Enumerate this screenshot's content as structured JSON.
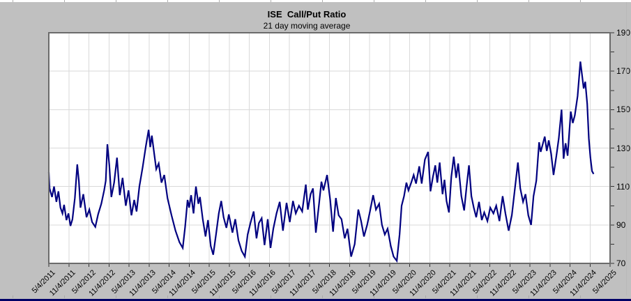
{
  "chart_data": {
    "type": "line",
    "title": "ISE  Call/Put Ratio",
    "subtitle": "21 day moving average",
    "grid": true,
    "legend_position": "none",
    "y_axis_side": "right",
    "x_label_rotation": -45,
    "x_range_decimal_years": [
      2011.34,
      2025.34
    ],
    "ylim": [
      70,
      190
    ],
    "y_major_ticks": [
      70,
      90,
      110,
      130,
      150,
      170,
      190
    ],
    "y_minor_step": 10,
    "x_tick_labels": [
      "5/4/2011",
      "11/4/2011",
      "5/4/2012",
      "11/4/2012",
      "5/4/2013",
      "11/4/2013",
      "5/4/2014",
      "11/4/2014",
      "5/4/2015",
      "11/4/2015",
      "5/4/2016",
      "11/4/2016",
      "5/4/2017",
      "11/4/2017",
      "5/4/2018",
      "11/4/2018",
      "5/4/2019",
      "11/4/2019",
      "5/4/2020",
      "11/4/2020",
      "5/4/2021",
      "11/4/2021",
      "5/4/2022",
      "11/4/2022",
      "5/4/2023",
      "11/4/2023",
      "5/4/2024",
      "11/4/2024",
      "5/4/2025"
    ],
    "colors": {
      "line": "#000080",
      "background": "#c0c0c0",
      "plot_background": "#ffffff",
      "gridline": "#d9d9d9",
      "plot_border": "#6b6b6b",
      "tick": "#333333",
      "bottom_strip": "#000066"
    },
    "series": [
      {
        "name": "ISE Call/Put Ratio 21-day moving average",
        "points": [
          [
            2011.34,
            117.5
          ],
          [
            2011.36,
            109
          ],
          [
            2011.42,
            104.5
          ],
          [
            2011.47,
            110
          ],
          [
            2011.53,
            102
          ],
          [
            2011.58,
            107.5
          ],
          [
            2011.63,
            99
          ],
          [
            2011.68,
            96
          ],
          [
            2011.72,
            100.5
          ],
          [
            2011.78,
            92.5
          ],
          [
            2011.83,
            96
          ],
          [
            2011.88,
            89.5
          ],
          [
            2011.93,
            93
          ],
          [
            2011.99,
            104
          ],
          [
            2012.05,
            121.5
          ],
          [
            2012.09,
            113
          ],
          [
            2012.13,
            99
          ],
          [
            2012.2,
            106
          ],
          [
            2012.28,
            94
          ],
          [
            2012.35,
            98
          ],
          [
            2012.42,
            91.5
          ],
          [
            2012.5,
            89
          ],
          [
            2012.57,
            95.5
          ],
          [
            2012.65,
            101
          ],
          [
            2012.72,
            108
          ],
          [
            2012.76,
            113
          ],
          [
            2012.8,
            132
          ],
          [
            2012.85,
            121
          ],
          [
            2012.9,
            104.5
          ],
          [
            2012.97,
            112
          ],
          [
            2013.04,
            125
          ],
          [
            2013.11,
            105.5
          ],
          [
            2013.18,
            114.5
          ],
          [
            2013.26,
            100
          ],
          [
            2013.33,
            108
          ],
          [
            2013.4,
            95
          ],
          [
            2013.47,
            103
          ],
          [
            2013.53,
            97
          ],
          [
            2013.6,
            110
          ],
          [
            2013.68,
            120
          ],
          [
            2013.76,
            131
          ],
          [
            2013.83,
            139.5
          ],
          [
            2013.87,
            130.5
          ],
          [
            2013.91,
            136.5
          ],
          [
            2013.97,
            127
          ],
          [
            2014.02,
            119
          ],
          [
            2014.08,
            122
          ],
          [
            2014.15,
            112
          ],
          [
            2014.22,
            116
          ],
          [
            2014.3,
            104
          ],
          [
            2014.4,
            95
          ],
          [
            2014.5,
            87
          ],
          [
            2014.6,
            81
          ],
          [
            2014.68,
            78
          ],
          [
            2014.74,
            89
          ],
          [
            2014.8,
            103
          ],
          [
            2014.84,
            99
          ],
          [
            2014.89,
            105.5
          ],
          [
            2014.95,
            96
          ],
          [
            2015.01,
            110
          ],
          [
            2015.07,
            101
          ],
          [
            2015.11,
            104.5
          ],
          [
            2015.18,
            93
          ],
          [
            2015.25,
            84
          ],
          [
            2015.31,
            92.5
          ],
          [
            2015.38,
            79
          ],
          [
            2015.44,
            74.5
          ],
          [
            2015.51,
            85
          ],
          [
            2015.58,
            96
          ],
          [
            2015.64,
            102.5
          ],
          [
            2015.7,
            94
          ],
          [
            2015.77,
            88.5
          ],
          [
            2015.83,
            95.5
          ],
          [
            2015.92,
            86
          ],
          [
            2015.99,
            93
          ],
          [
            2016.07,
            82
          ],
          [
            2016.15,
            76.5
          ],
          [
            2016.23,
            73.5
          ],
          [
            2016.3,
            85
          ],
          [
            2016.37,
            91
          ],
          [
            2016.45,
            97
          ],
          [
            2016.52,
            83
          ],
          [
            2016.58,
            91
          ],
          [
            2016.65,
            93.5
          ],
          [
            2016.72,
            79.5
          ],
          [
            2016.8,
            93
          ],
          [
            2016.87,
            78
          ],
          [
            2016.94,
            88
          ],
          [
            2017.02,
            96
          ],
          [
            2017.1,
            102
          ],
          [
            2017.18,
            87
          ],
          [
            2017.27,
            101.5
          ],
          [
            2017.35,
            91.5
          ],
          [
            2017.43,
            102.5
          ],
          [
            2017.5,
            96
          ],
          [
            2017.58,
            100
          ],
          [
            2017.66,
            97
          ],
          [
            2017.75,
            111
          ],
          [
            2017.8,
            98
          ],
          [
            2017.87,
            106
          ],
          [
            2017.93,
            109
          ],
          [
            2018.0,
            86
          ],
          [
            2018.08,
            101
          ],
          [
            2018.14,
            112.5
          ],
          [
            2018.19,
            108
          ],
          [
            2018.28,
            116
          ],
          [
            2018.36,
            103
          ],
          [
            2018.43,
            86.5
          ],
          [
            2018.5,
            104
          ],
          [
            2018.57,
            95
          ],
          [
            2018.64,
            93
          ],
          [
            2018.72,
            83
          ],
          [
            2018.79,
            88
          ],
          [
            2018.88,
            73.5
          ],
          [
            2018.97,
            80
          ],
          [
            2019.06,
            98
          ],
          [
            2019.13,
            92
          ],
          [
            2019.2,
            84
          ],
          [
            2019.28,
            90
          ],
          [
            2019.35,
            97
          ],
          [
            2019.43,
            105.5
          ],
          [
            2019.5,
            98
          ],
          [
            2019.58,
            101
          ],
          [
            2019.65,
            90
          ],
          [
            2019.72,
            85
          ],
          [
            2019.79,
            88
          ],
          [
            2019.87,
            79
          ],
          [
            2019.94,
            73.5
          ],
          [
            2020.02,
            71.3
          ],
          [
            2020.09,
            85
          ],
          [
            2020.14,
            100
          ],
          [
            2020.2,
            105
          ],
          [
            2020.26,
            112
          ],
          [
            2020.31,
            108
          ],
          [
            2020.38,
            112
          ],
          [
            2020.44,
            116
          ],
          [
            2020.5,
            111.5
          ],
          [
            2020.58,
            120.5
          ],
          [
            2020.64,
            111.5
          ],
          [
            2020.72,
            124
          ],
          [
            2020.8,
            128
          ],
          [
            2020.86,
            107.5
          ],
          [
            2020.92,
            115
          ],
          [
            2020.98,
            121
          ],
          [
            2021.03,
            112
          ],
          [
            2021.09,
            122.5
          ],
          [
            2021.16,
            106
          ],
          [
            2021.21,
            113.5
          ],
          [
            2021.26,
            102.5
          ],
          [
            2021.32,
            96.5
          ],
          [
            2021.38,
            115
          ],
          [
            2021.44,
            125.5
          ],
          [
            2021.5,
            114.5
          ],
          [
            2021.55,
            122
          ],
          [
            2021.63,
            105
          ],
          [
            2021.7,
            97.5
          ],
          [
            2021.76,
            110
          ],
          [
            2021.82,
            121
          ],
          [
            2021.88,
            105
          ],
          [
            2021.94,
            99
          ],
          [
            2022.0,
            94
          ],
          [
            2022.07,
            102
          ],
          [
            2022.14,
            92.5
          ],
          [
            2022.2,
            96.5
          ],
          [
            2022.28,
            92
          ],
          [
            2022.35,
            99
          ],
          [
            2022.43,
            96
          ],
          [
            2022.5,
            100
          ],
          [
            2022.58,
            92
          ],
          [
            2022.66,
            105
          ],
          [
            2022.73,
            96
          ],
          [
            2022.81,
            87
          ],
          [
            2022.89,
            95
          ],
          [
            2022.96,
            108
          ],
          [
            2023.04,
            122.5
          ],
          [
            2023.1,
            109
          ],
          [
            2023.17,
            102
          ],
          [
            2023.23,
            106
          ],
          [
            2023.3,
            95
          ],
          [
            2023.37,
            90
          ],
          [
            2023.43,
            105
          ],
          [
            2023.5,
            113
          ],
          [
            2023.57,
            133
          ],
          [
            2023.61,
            128
          ],
          [
            2023.66,
            132
          ],
          [
            2023.71,
            136
          ],
          [
            2023.76,
            128.5
          ],
          [
            2023.81,
            134
          ],
          [
            2023.87,
            127
          ],
          [
            2023.93,
            116
          ],
          [
            2024.0,
            126
          ],
          [
            2024.06,
            135
          ],
          [
            2024.13,
            150
          ],
          [
            2024.18,
            124.5
          ],
          [
            2024.23,
            132.5
          ],
          [
            2024.28,
            126
          ],
          [
            2024.36,
            149
          ],
          [
            2024.41,
            143
          ],
          [
            2024.46,
            147
          ],
          [
            2024.53,
            157
          ],
          [
            2024.6,
            175
          ],
          [
            2024.64,
            168
          ],
          [
            2024.68,
            161
          ],
          [
            2024.72,
            164.5
          ],
          [
            2024.77,
            153
          ],
          [
            2024.81,
            135
          ],
          [
            2024.85,
            125
          ],
          [
            2024.89,
            118
          ],
          [
            2024.93,
            116.5
          ]
        ]
      }
    ]
  }
}
